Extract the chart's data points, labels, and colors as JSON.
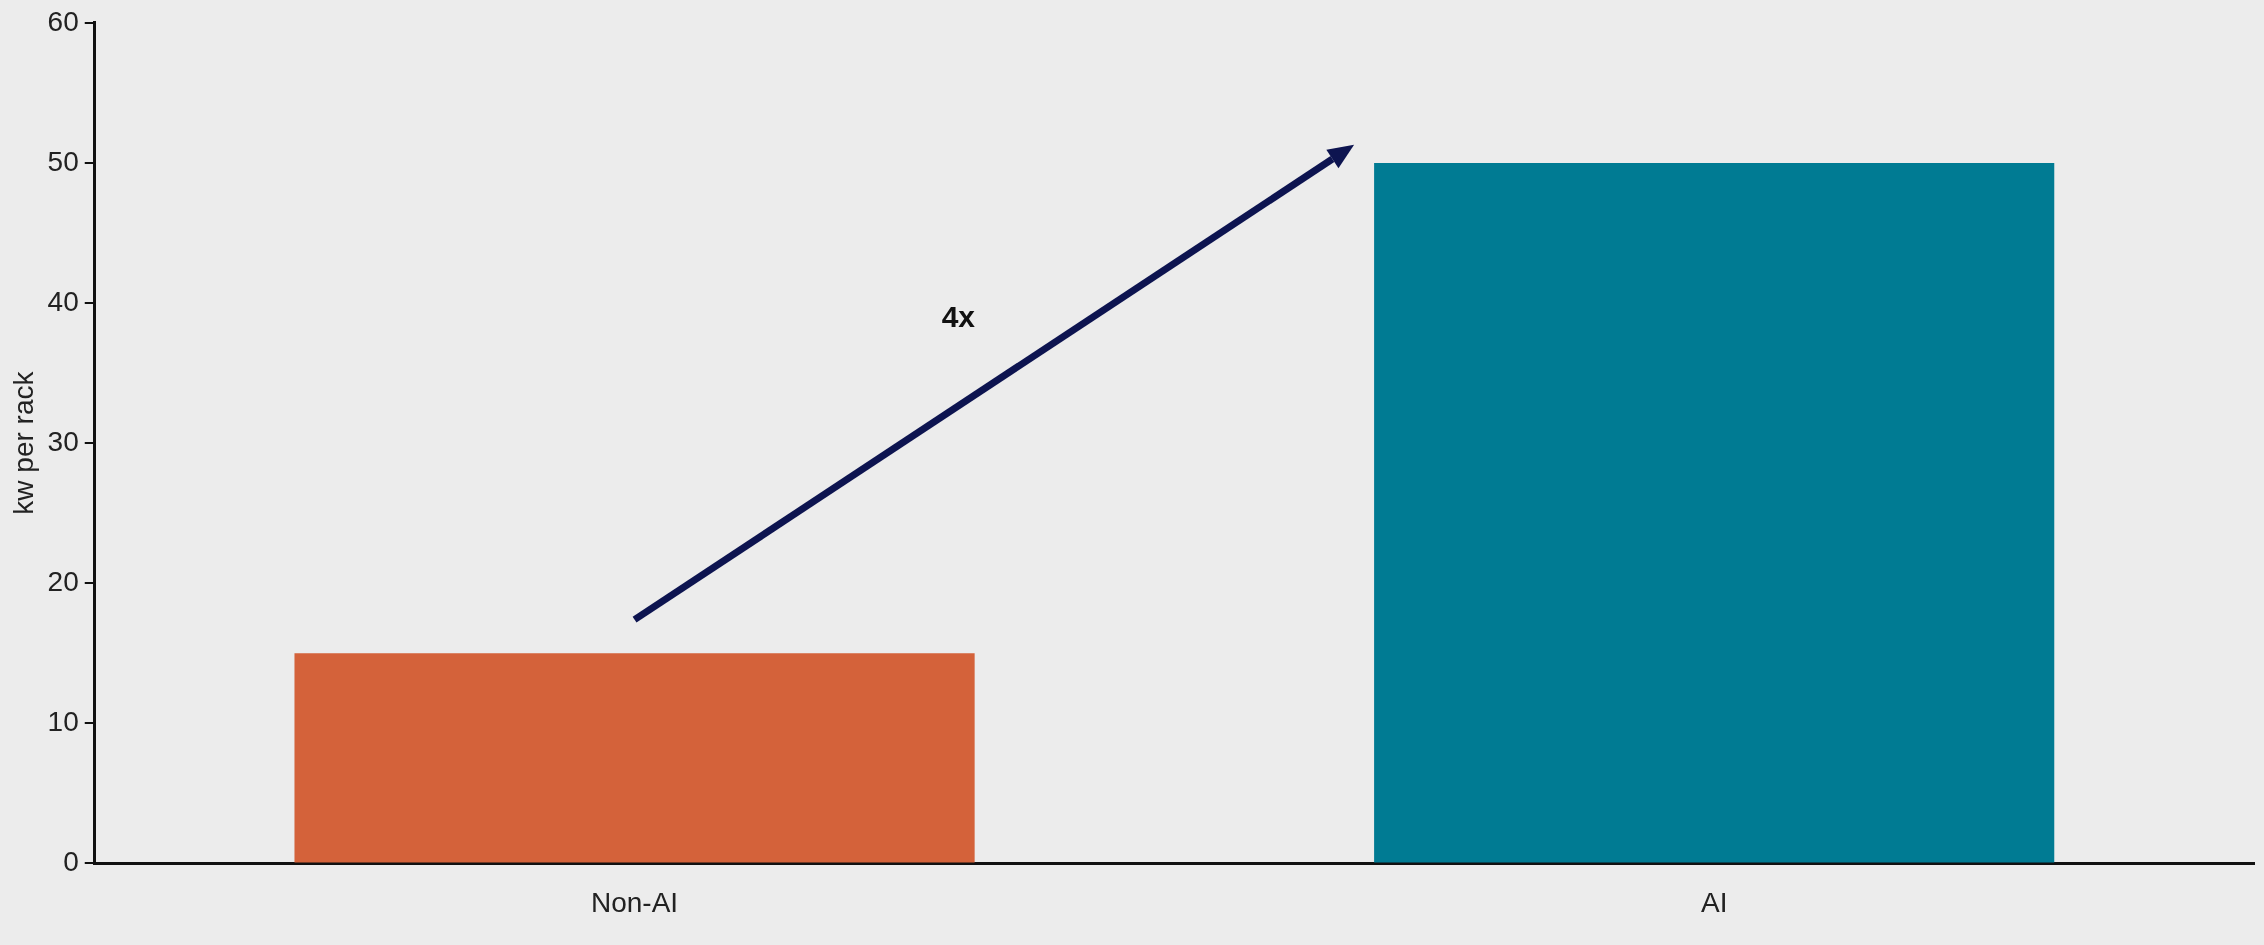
{
  "chart_data": {
    "type": "bar",
    "ylabel": "kw per rack",
    "categories": [
      "Non-AI",
      "AI"
    ],
    "values": [
      15,
      50
    ],
    "colors": [
      "#d4623a",
      "#007b93"
    ],
    "ylim": [
      0,
      60
    ],
    "yticks": [
      0,
      10,
      20,
      30,
      40,
      50,
      60
    ],
    "grid": false,
    "legend": false,
    "annotations": [
      "4x"
    ]
  }
}
